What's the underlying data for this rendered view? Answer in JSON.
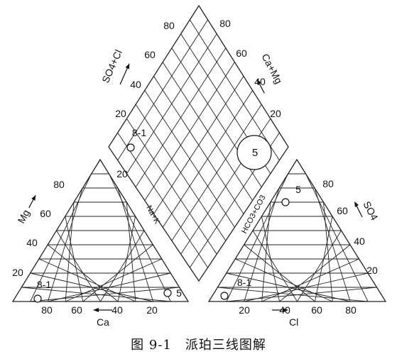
{
  "figure": {
    "caption": "图 9-1　派珀三线图解"
  },
  "cation_triangle": {
    "apex_label": "Mg",
    "base_label": "Ca",
    "right_side_label": "Na+K",
    "left_ticks": [
      "20",
      "40",
      "60",
      "80"
    ],
    "bottom_ticks": [
      "80",
      "60",
      "40",
      "20"
    ],
    "sample_labels": [
      "8-1",
      "5"
    ]
  },
  "anion_triangle": {
    "right_side_label": "SO4",
    "left_side_label": "HCO3+CO3",
    "base_label": "Cl",
    "right_ticks": [
      "80",
      "60",
      "40",
      "20"
    ],
    "bottom_ticks": [
      "20",
      "40",
      "60",
      "80"
    ],
    "sample_labels": [
      "5",
      "8-1"
    ]
  },
  "diamond": {
    "upper_left_label": "SO4+Cl",
    "upper_right_label": "Ca+Mg",
    "upper_left_ticks": [
      "20",
      "40",
      "60",
      "80"
    ],
    "upper_right_ticks": [
      "20",
      "40",
      "60",
      "80"
    ],
    "lower_left_ticks": [
      "20"
    ],
    "sample_labels": [
      "8-1",
      "5"
    ]
  }
}
